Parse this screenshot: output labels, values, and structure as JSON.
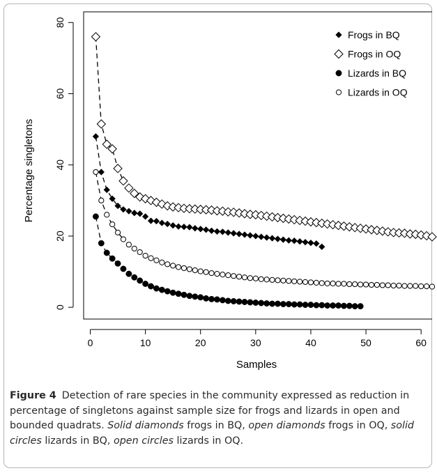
{
  "chart_data": {
    "type": "scatter",
    "xlabel": "Samples",
    "ylabel": "Percentage singletons",
    "xlim": [
      -1.2,
      62
    ],
    "ylim": [
      -3.3,
      83
    ],
    "xticks": [
      0,
      10,
      20,
      30,
      40,
      50,
      60
    ],
    "yticks": [
      0,
      20,
      40,
      60,
      80
    ],
    "legend_position": "top-right",
    "grid": false,
    "series": [
      {
        "name": "Frogs in BQ",
        "marker": "solid-diamond",
        "x": [
          1,
          2,
          3,
          4,
          5,
          6,
          7,
          8,
          9,
          10,
          11,
          12,
          13,
          14,
          15,
          16,
          17,
          18,
          19,
          20,
          21,
          22,
          23,
          24,
          25,
          26,
          27,
          28,
          29,
          30,
          31,
          32,
          33,
          34,
          35,
          36,
          37,
          38,
          39,
          40,
          41,
          42
        ],
        "values": [
          48,
          38,
          33,
          30.5,
          28.5,
          27.5,
          27,
          26.5,
          26.3,
          25.5,
          24.3,
          24.2,
          23.7,
          23.4,
          23,
          22.7,
          22.6,
          22.5,
          22.2,
          22,
          21.8,
          21.5,
          21.3,
          21.2,
          21,
          20.8,
          20.6,
          20.4,
          20.2,
          20,
          19.8,
          19.6,
          19.4,
          19.2,
          19,
          18.8,
          18.7,
          18.5,
          18.3,
          18.1,
          17.9,
          17
        ]
      },
      {
        "name": "Frogs in OQ",
        "marker": "open-diamond",
        "x": [
          1,
          2,
          3,
          4,
          5,
          6,
          7,
          8,
          9,
          10,
          11,
          12,
          13,
          14,
          15,
          16,
          17,
          18,
          19,
          20,
          21,
          22,
          23,
          24,
          25,
          26,
          27,
          28,
          29,
          30,
          31,
          32,
          33,
          34,
          35,
          36,
          37,
          38,
          39,
          40,
          41,
          42,
          43,
          44,
          45,
          46,
          47,
          48,
          49,
          50,
          51,
          52,
          53,
          54,
          55,
          56,
          57,
          58,
          59,
          60,
          61,
          62
        ],
        "values": [
          76,
          51.5,
          45.8,
          44.5,
          39,
          35.5,
          33.5,
          32,
          31,
          30.5,
          30,
          29.5,
          29,
          28.5,
          28.2,
          28,
          27.8,
          27.7,
          27.6,
          27.5,
          27.4,
          27.3,
          27.1,
          27,
          26.8,
          26.7,
          26.5,
          26.3,
          26.1,
          26,
          25.8,
          25.6,
          25.4,
          25.2,
          25,
          24.8,
          24.6,
          24.4,
          24.2,
          24,
          23.8,
          23.6,
          23.4,
          23.2,
          23,
          22.8,
          22.6,
          22.4,
          22.2,
          22,
          21.8,
          21.6,
          21.4,
          21.2,
          21,
          20.9,
          20.8,
          20.6,
          20.5,
          20.3,
          20.1,
          19.8
        ]
      },
      {
        "name": "Lizards in BQ",
        "marker": "solid-circle",
        "x": [
          1,
          2,
          3,
          4,
          5,
          6,
          7,
          8,
          9,
          10,
          11,
          12,
          13,
          14,
          15,
          16,
          17,
          18,
          19,
          20,
          21,
          22,
          23,
          24,
          25,
          26,
          27,
          28,
          29,
          30,
          31,
          32,
          33,
          34,
          35,
          36,
          37,
          38,
          39,
          40,
          41,
          42,
          43,
          44,
          45,
          46,
          47,
          48,
          49
        ],
        "values": [
          25.5,
          18,
          15.3,
          13.7,
          12.3,
          10.8,
          9.4,
          8.4,
          7.5,
          6.6,
          5.9,
          5.3,
          4.9,
          4.5,
          4.1,
          3.8,
          3.5,
          3.2,
          3,
          2.8,
          2.5,
          2.3,
          2.2,
          2,
          1.8,
          1.7,
          1.6,
          1.5,
          1.4,
          1.3,
          1.2,
          1.1,
          1,
          1,
          0.9,
          0.9,
          0.8,
          0.8,
          0.7,
          0.7,
          0.6,
          0.6,
          0.5,
          0.5,
          0.5,
          0.4,
          0.4,
          0.3,
          0.3
        ]
      },
      {
        "name": "Lizards in OQ",
        "marker": "open-circle",
        "x": [
          1,
          2,
          3,
          4,
          5,
          6,
          7,
          8,
          9,
          10,
          11,
          12,
          13,
          14,
          15,
          16,
          17,
          18,
          19,
          20,
          21,
          22,
          23,
          24,
          25,
          26,
          27,
          28,
          29,
          30,
          31,
          32,
          33,
          34,
          35,
          36,
          37,
          38,
          39,
          40,
          41,
          42,
          43,
          44,
          45,
          46,
          47,
          48,
          49,
          50,
          51,
          52,
          53,
          54,
          55,
          56,
          57,
          58,
          59,
          60,
          61,
          62
        ],
        "values": [
          38,
          30,
          26,
          23.3,
          21,
          19.1,
          17.6,
          16.5,
          15.5,
          14.5,
          13.8,
          13.2,
          12.6,
          12.1,
          11.7,
          11.3,
          11,
          10.7,
          10.4,
          10.1,
          9.9,
          9.6,
          9.4,
          9.2,
          9,
          8.8,
          8.6,
          8.4,
          8.2,
          8.1,
          7.9,
          7.8,
          7.7,
          7.6,
          7.5,
          7.4,
          7.3,
          7.2,
          7.1,
          7,
          6.9,
          6.8,
          6.7,
          6.7,
          6.6,
          6.6,
          6.5,
          6.5,
          6.4,
          6.4,
          6.3,
          6.3,
          6.2,
          6.2,
          6.1,
          6.1,
          6,
          6,
          6,
          5.9,
          5.9,
          5.8
        ]
      }
    ]
  },
  "caption": {
    "label": "Figure 4",
    "parts": [
      {
        "text": "Detection of rare species in the community expressed as reduction in percentage of singletons against sample size for frogs and lizards in open and bounded quadrats. ",
        "italic": false
      },
      {
        "text": "Solid diamonds",
        "italic": true
      },
      {
        "text": " frogs in BQ, ",
        "italic": false
      },
      {
        "text": "open diamonds",
        "italic": true
      },
      {
        "text": " frogs in OQ, ",
        "italic": false
      },
      {
        "text": "solid circles",
        "italic": true
      },
      {
        "text": " lizards in BQ, ",
        "italic": false
      },
      {
        "text": "open circles",
        "italic": true
      },
      {
        "text": " lizards in OQ.",
        "italic": false
      }
    ]
  }
}
